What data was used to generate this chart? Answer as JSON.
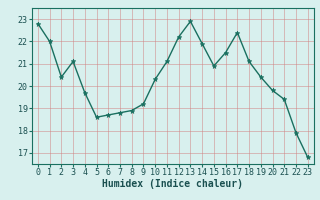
{
  "x": [
    0,
    1,
    2,
    3,
    4,
    5,
    6,
    7,
    8,
    9,
    10,
    11,
    12,
    13,
    14,
    15,
    16,
    17,
    18,
    19,
    20,
    21,
    22,
    23
  ],
  "y": [
    22.8,
    22.0,
    20.4,
    21.1,
    19.7,
    18.6,
    18.7,
    18.8,
    18.9,
    19.2,
    20.3,
    21.1,
    22.2,
    22.9,
    21.9,
    20.9,
    21.5,
    22.4,
    21.1,
    20.4,
    19.8,
    19.4,
    17.9,
    16.8
  ],
  "xlabel": "Humidex (Indice chaleur)",
  "ylim": [
    16.5,
    23.5
  ],
  "yticks": [
    17,
    18,
    19,
    20,
    21,
    22,
    23
  ],
  "xticks": [
    0,
    1,
    2,
    3,
    4,
    5,
    6,
    7,
    8,
    9,
    10,
    11,
    12,
    13,
    14,
    15,
    16,
    17,
    18,
    19,
    20,
    21,
    22,
    23
  ],
  "line_color": "#1a7060",
  "marker_color": "#1a7060",
  "bg_color": "#d8f0ee",
  "grid_color": "#d08080",
  "text_color": "#1a5050",
  "xlabel_color": "#1a5050",
  "tick_fontsize": 6.0,
  "axis_fontsize": 7.0
}
